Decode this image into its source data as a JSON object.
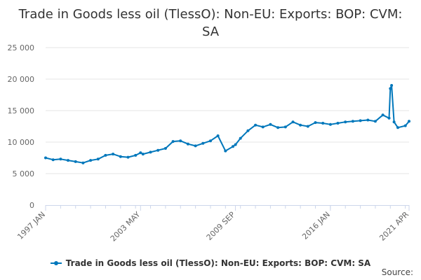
{
  "chart_data": {
    "type": "line",
    "title": "Trade in Goods less oil (TlessO): Non-EU: Exports: BOP: CVM: SA",
    "xlabel": "",
    "ylabel": "",
    "ylim": [
      0,
      25000
    ],
    "yticks": [
      0,
      5000,
      10000,
      15000,
      20000,
      25000
    ],
    "ytick_labels": [
      "0",
      "5 000",
      "10 000",
      "15 000",
      "20 000",
      "25 000"
    ],
    "xtick_labels": [
      "1997 JAN",
      "2003 MAY",
      "2009 SEP",
      "2016 JAN",
      "2021 APR"
    ],
    "grid": true,
    "legend_position": "bottom",
    "series": [
      {
        "name": "Trade in Goods less oil (TlessO): Non-EU: Exports: BOP: CVM: SA",
        "color": "#0077bb",
        "x": [
          "1997 JAN",
          "1997 JUL",
          "1998 JAN",
          "1998 JUL",
          "1999 JAN",
          "1999 JUL",
          "2000 JAN",
          "2000 JUL",
          "2001 JAN",
          "2001 JUL",
          "2002 JAN",
          "2002 JUL",
          "2003 JAN",
          "2003 MAY",
          "2003 JUL",
          "2004 JAN",
          "2004 JUL",
          "2005 JAN",
          "2005 JUL",
          "2006 JAN",
          "2006 JUL",
          "2007 JAN",
          "2007 JUL",
          "2008 JAN",
          "2008 JUL",
          "2009 JAN",
          "2009 JUL",
          "2009 SEP",
          "2010 JAN",
          "2010 JUL",
          "2011 JAN",
          "2011 JUL",
          "2012 JAN",
          "2012 JUL",
          "2013 JAN",
          "2013 JUL",
          "2014 JAN",
          "2014 JUL",
          "2015 JAN",
          "2015 JUL",
          "2016 JAN",
          "2016 JUL",
          "2017 JAN",
          "2017 JUL",
          "2018 JAN",
          "2018 JUL",
          "2019 JAN",
          "2019 JUL",
          "2019 DEC",
          "2020 JAN",
          "2020 FEB",
          "2020 APR",
          "2020 JUL",
          "2021 JAN",
          "2021 APR"
        ],
        "values": [
          7500,
          7200,
          7300,
          7100,
          6900,
          6700,
          7100,
          7300,
          7900,
          8100,
          7700,
          7600,
          7900,
          8300,
          8100,
          8400,
          8700,
          9000,
          10100,
          10200,
          9700,
          9400,
          9800,
          10200,
          11000,
          8600,
          9300,
          9600,
          10600,
          11800,
          12700,
          12400,
          12800,
          12300,
          12400,
          13200,
          12700,
          12500,
          13100,
          13000,
          12800,
          13000,
          13200,
          13300,
          13400,
          13500,
          13300,
          14300,
          13800,
          18500,
          19000,
          13200,
          12300,
          12600,
          13300
        ]
      }
    ]
  },
  "credit": "Source:"
}
